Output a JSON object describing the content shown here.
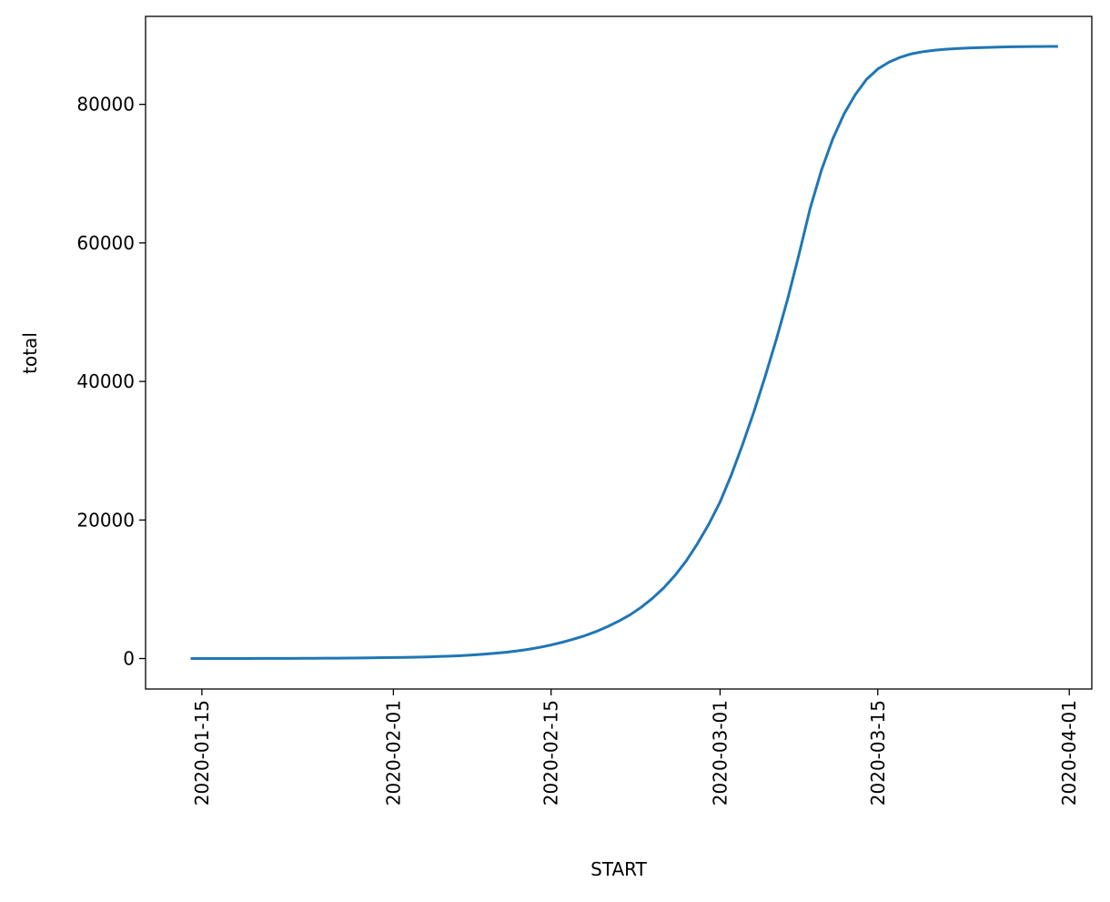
{
  "chart_data": {
    "type": "line",
    "x_label": "START",
    "y_label": "total",
    "x": [
      "2020-01-14",
      "2020-01-15",
      "2020-01-16",
      "2020-01-17",
      "2020-01-18",
      "2020-01-19",
      "2020-01-20",
      "2020-01-21",
      "2020-01-22",
      "2020-01-23",
      "2020-01-24",
      "2020-01-25",
      "2020-01-26",
      "2020-01-27",
      "2020-01-28",
      "2020-01-29",
      "2020-01-30",
      "2020-01-31",
      "2020-02-01",
      "2020-02-02",
      "2020-02-03",
      "2020-02-04",
      "2020-02-05",
      "2020-02-06",
      "2020-02-07",
      "2020-02-08",
      "2020-02-09",
      "2020-02-10",
      "2020-02-11",
      "2020-02-12",
      "2020-02-13",
      "2020-02-14",
      "2020-02-15",
      "2020-02-16",
      "2020-02-17",
      "2020-02-18",
      "2020-02-19",
      "2020-02-20",
      "2020-02-21",
      "2020-02-22",
      "2020-02-23",
      "2020-02-24",
      "2020-02-25",
      "2020-02-26",
      "2020-02-27",
      "2020-02-28",
      "2020-02-29",
      "2020-03-01",
      "2020-03-02",
      "2020-03-03",
      "2020-03-04",
      "2020-03-05",
      "2020-03-06",
      "2020-03-07",
      "2020-03-08",
      "2020-03-09",
      "2020-03-10",
      "2020-03-11",
      "2020-03-12",
      "2020-03-13",
      "2020-03-14",
      "2020-03-15",
      "2020-03-16",
      "2020-03-17",
      "2020-03-18",
      "2020-03-19",
      "2020-03-20",
      "2020-03-21",
      "2020-03-22",
      "2020-03-23",
      "2020-03-24",
      "2020-03-25",
      "2020-03-26",
      "2020-03-27",
      "2020-03-28",
      "2020-03-29",
      "2020-03-30",
      "2020-03-31"
    ],
    "series": [
      {
        "name": "total",
        "color": "#1f77b4",
        "values": [
          0,
          1,
          2,
          4,
          6,
          8,
          11,
          14,
          18,
          23,
          29,
          36,
          45,
          55,
          67,
          81,
          98,
          125,
          150,
          170,
          200,
          240,
          290,
          350,
          420,
          510,
          620,
          750,
          910,
          1100,
          1330,
          1620,
          1960,
          2350,
          2800,
          3300,
          3900,
          4600,
          5400,
          6300,
          7400,
          8700,
          10200,
          12000,
          14100,
          16600,
          19400,
          22600,
          26500,
          30900,
          35600,
          40700,
          46100,
          51900,
          58300,
          65000,
          70500,
          75000,
          78600,
          81400,
          83600,
          85100,
          86100,
          86800,
          87300,
          87600,
          87800,
          87950,
          88050,
          88130,
          88190,
          88240,
          88280,
          88310,
          88330,
          88350,
          88360,
          88370
        ]
      }
    ],
    "xlim": [
      "2020-01-10",
      "2020-04-03"
    ],
    "xticks": [
      "2020-01-15",
      "2020-02-01",
      "2020-02-15",
      "2020-03-01",
      "2020-03-15",
      "2020-04-01"
    ],
    "ylim": [
      -4400,
      92700
    ],
    "yticks": [
      0,
      20000,
      40000,
      60000,
      80000
    ],
    "grid": false
  }
}
